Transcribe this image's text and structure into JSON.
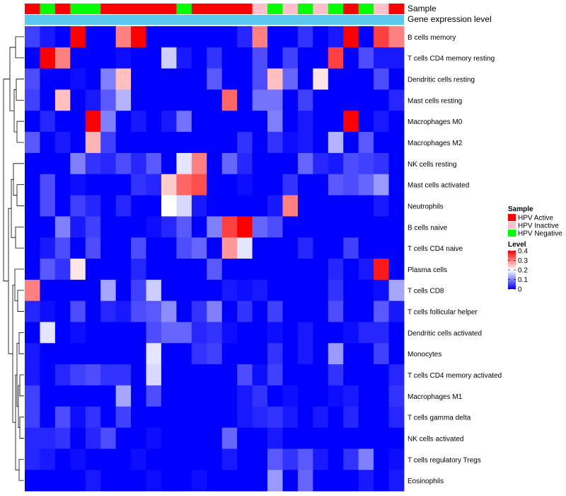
{
  "chart_data": {
    "type": "heatmap",
    "title": "",
    "annotation_tracks": [
      "Sample",
      "Gene expression level"
    ],
    "sample_groups": [
      "HPV Active",
      "HPV Negative",
      "HPV Active",
      "HPV Negative",
      "HPV Negative",
      "HPV Active",
      "HPV Active",
      "HPV Active",
      "HPV Active",
      "HPV Active",
      "HPV Negative",
      "HPV Active",
      "HPV Active",
      "HPV Active",
      "HPV Active",
      "HPV Inactive",
      "HPV Negative",
      "HPV Inactive",
      "HPV Negative",
      "HPV Inactive",
      "HPV Negative",
      "HPV Active",
      "HPV Negative",
      "HPV Inactive",
      "HPV Active"
    ],
    "rows": [
      "B cells memory",
      "T cells CD4 memory resting",
      "Dendritic cells resting",
      "Mast cells resting",
      "Macrophages M0",
      "Macrophages M2",
      "NK cells resting",
      "Mast cells activated",
      "Neutrophils",
      "B cells naive",
      "T cells CD4 naive",
      "Plasma cells",
      "T cells CD8",
      "T cells follicular helper",
      "Dendritic cells activated",
      "Monocytes",
      "T cells CD4 memory activated",
      "Macrophages M1",
      "T cells gamma delta",
      "NK cells activated",
      "T cells regulatory  Tregs",
      "Eosinophils"
    ],
    "values": [
      [
        0.05,
        0.02,
        0,
        0.4,
        0,
        0,
        0.3,
        0.4,
        0,
        0,
        0,
        0,
        0,
        0,
        0.03,
        0.3,
        0,
        0,
        0.04,
        0,
        0.02,
        0.4,
        0,
        0.35,
        0.3
      ],
      [
        0,
        0.4,
        0.3,
        0,
        0,
        0,
        0.01,
        0,
        0,
        0.16,
        0.02,
        0,
        0.04,
        0,
        0,
        0.06,
        0,
        0.05,
        0,
        0,
        0.35,
        0,
        0.06,
        0.02,
        0.02
      ],
      [
        0.06,
        0,
        0,
        0.01,
        0,
        0.1,
        0.25,
        0,
        0,
        0,
        0,
        0,
        0.07,
        0,
        0,
        0.06,
        0.25,
        0.08,
        0,
        0.22,
        0,
        0,
        0,
        0.06,
        0
      ],
      [
        0.05,
        0,
        0.25,
        0,
        0.02,
        0.07,
        0.14,
        0,
        0,
        0,
        0,
        0,
        0,
        0.32,
        0,
        0.09,
        0.09,
        0,
        0.05,
        0,
        0,
        0,
        0,
        0,
        0.03
      ],
      [
        0,
        0.03,
        0,
        0,
        0.4,
        0.1,
        0,
        0.02,
        0,
        0.02,
        0.09,
        0,
        0,
        0,
        0,
        0,
        0.1,
        0,
        0.02,
        0,
        0,
        0.4,
        0,
        0.02,
        0
      ],
      [
        0.07,
        0,
        0.02,
        0,
        0.26,
        0.05,
        0,
        0,
        0,
        0,
        0,
        0,
        0,
        0,
        0.04,
        0,
        0.04,
        0.01,
        0.02,
        0,
        0.14,
        0,
        0.07,
        0,
        0
      ],
      [
        0,
        0,
        0,
        0.1,
        0.04,
        0.03,
        0.06,
        0.03,
        0.07,
        0,
        0.18,
        0.3,
        0,
        0.08,
        0.03,
        0,
        0,
        0,
        0.08,
        0.03,
        0.02,
        0.06,
        0.05,
        0.04,
        0
      ],
      [
        0,
        0.06,
        0,
        0.01,
        0,
        0,
        0,
        0.04,
        0.03,
        0.24,
        0.32,
        0.34,
        0,
        0,
        0.01,
        0,
        0,
        0.04,
        0,
        0,
        0.07,
        0.06,
        0.08,
        0.12,
        0
      ],
      [
        0,
        0.06,
        0,
        0.05,
        0.03,
        0,
        0.03,
        0,
        0,
        0.2,
        0.17,
        0.02,
        0,
        0,
        0,
        0,
        0.02,
        0.3,
        0,
        0,
        0,
        0,
        0,
        0.02,
        0
      ],
      [
        0,
        0,
        0.1,
        0.02,
        0.05,
        0,
        0,
        0,
        0.01,
        0.03,
        0.07,
        0,
        0.1,
        0.35,
        0.4,
        0.08,
        0.06,
        0,
        0,
        0,
        0,
        0,
        0,
        0,
        0
      ],
      [
        0,
        0.02,
        0.06,
        0,
        0.06,
        0,
        0,
        0.06,
        0,
        0,
        0.06,
        0.08,
        0,
        0.28,
        0.18,
        0,
        0,
        0,
        0.03,
        0,
        0,
        0.05,
        0,
        0,
        0
      ],
      [
        0,
        0.07,
        0.04,
        0.22,
        0,
        0,
        0,
        0.03,
        0,
        0,
        0,
        0,
        0.07,
        0,
        0,
        0,
        0,
        0,
        0,
        0,
        0.03,
        0,
        0.02,
        0.38,
        0
      ],
      [
        0.3,
        0,
        0,
        0,
        0,
        0.13,
        0,
        0.05,
        0.16,
        0,
        0,
        0,
        0,
        0.02,
        0.01,
        0.02,
        0,
        0,
        0,
        0,
        0.04,
        0,
        0,
        0.01,
        0.13
      ],
      [
        0.03,
        0.01,
        0,
        0.06,
        0,
        0.03,
        0.02,
        0.06,
        0.07,
        0.11,
        0,
        0.04,
        0.1,
        0,
        0.04,
        0,
        0.05,
        0,
        0,
        0,
        0.06,
        0,
        0,
        0.07,
        0.02
      ],
      [
        0,
        0.18,
        0,
        0.01,
        0,
        0,
        0,
        0,
        0.06,
        0.08,
        0.08,
        0.03,
        0.04,
        0.01,
        0,
        0,
        0.01,
        0,
        0.02,
        0,
        0,
        0.01,
        0.03,
        0.03,
        0
      ],
      [
        0.02,
        0,
        0,
        0,
        0,
        0,
        0,
        0,
        0.18,
        0,
        0,
        0.04,
        0.05,
        0,
        0,
        0,
        0.04,
        0,
        0.02,
        0,
        0.12,
        0,
        0,
        0.05,
        0
      ],
      [
        0.02,
        0,
        0.03,
        0.05,
        0.06,
        0.04,
        0.04,
        0,
        0.17,
        0,
        0,
        0,
        0,
        0,
        0.06,
        0.01,
        0.05,
        0,
        0,
        0,
        0.04,
        0,
        0,
        0,
        0.03
      ],
      [
        0.05,
        0,
        0,
        0,
        0,
        0,
        0.13,
        0,
        0.06,
        0,
        0,
        0,
        0,
        0,
        0.02,
        0.04,
        0,
        0.01,
        0,
        0,
        0.01,
        0.02,
        0,
        0,
        0.04
      ],
      [
        0.05,
        0,
        0.06,
        0.01,
        0.04,
        0,
        0.05,
        0,
        0,
        0,
        0,
        0,
        0,
        0,
        0.02,
        0.03,
        0.04,
        0.02,
        0,
        0.02,
        0,
        0.03,
        0,
        0,
        0.03
      ],
      [
        0.03,
        0.03,
        0.04,
        0,
        0.03,
        0.06,
        0,
        0,
        0.01,
        0,
        0,
        0,
        0,
        0.08,
        0,
        0,
        0.02,
        0,
        0,
        0,
        0,
        0,
        0,
        0,
        0
      ],
      [
        0.03,
        0.02,
        0,
        0.01,
        0,
        0,
        0,
        0.01,
        0,
        0,
        0,
        0,
        0,
        0.02,
        0,
        0,
        0.07,
        0.04,
        0.07,
        0.02,
        0,
        0.04,
        0.1,
        0,
        0.01
      ],
      [
        0,
        0,
        0,
        0,
        0.02,
        0,
        0,
        0,
        0.01,
        0,
        0,
        0.01,
        0,
        0,
        0,
        0,
        0.12,
        0,
        0.08,
        0,
        0,
        0,
        0.02,
        0,
        0.02
      ]
    ],
    "color_scale": {
      "min": 0,
      "mid": 0.2,
      "max": 0.4,
      "low": "#0000ff",
      "midColor": "#ffffff",
      "high": "#ff0000"
    },
    "gene_track_color": "#5bc8f0",
    "legend": {
      "sample_title": "Sample",
      "sample_items": [
        {
          "label": "HPV Active",
          "color": "#ff0000"
        },
        {
          "label": "HPV Inactive",
          "color": "#ffc0cb"
        },
        {
          "label": "HPV Negative",
          "color": "#00ff00"
        }
      ],
      "level_title": "Level",
      "level_ticks": [
        0,
        0.1,
        0.2,
        0.3,
        0.4
      ],
      "level_tick_labels": [
        "0",
        "0.1",
        "0.2",
        "0.3",
        "0.4"
      ],
      "placement": "right"
    }
  }
}
